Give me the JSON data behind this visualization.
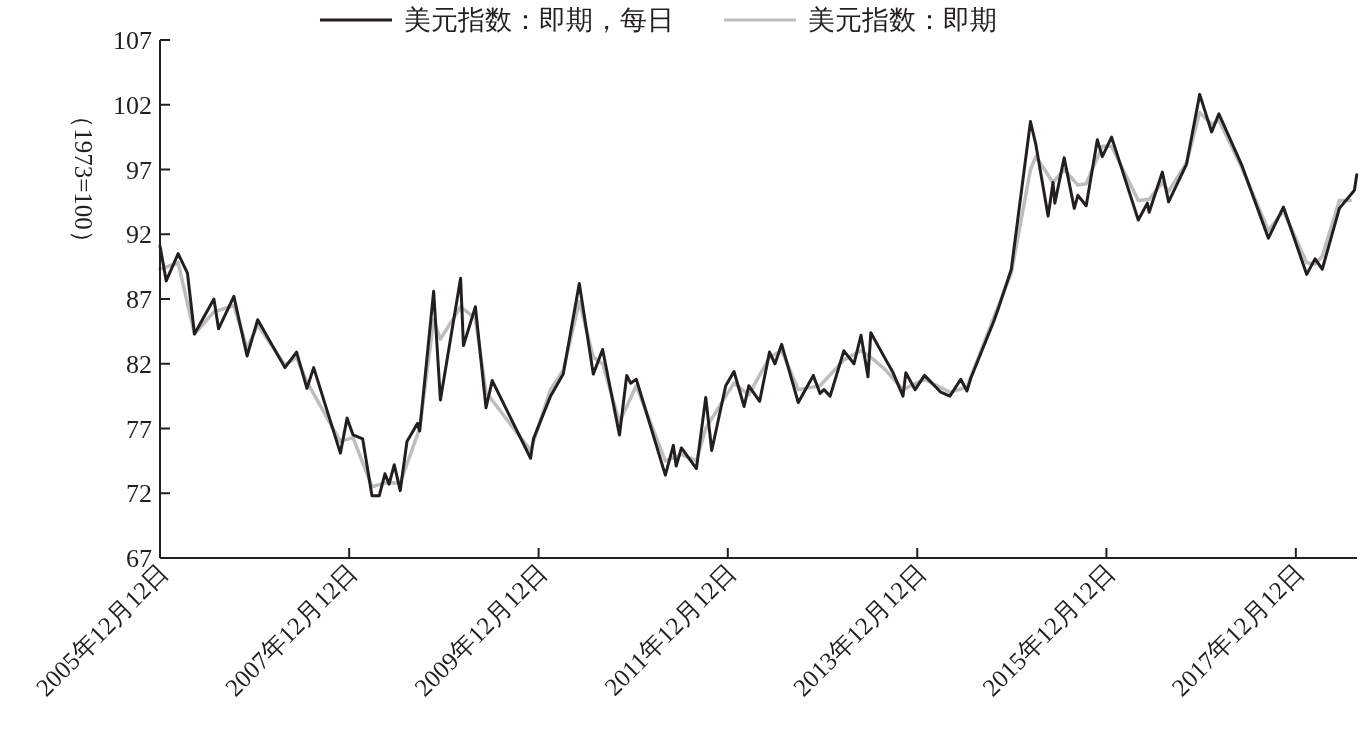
{
  "chart_data": {
    "type": "line",
    "ylabel": "（1973=100）",
    "xlim": [
      "2005-12-12",
      "2018-08-05"
    ],
    "ylim": [
      67,
      107
    ],
    "xticks": [
      {
        "value": "2005-12-12",
        "label": "2005年12月12日"
      },
      {
        "value": "2007-12-12",
        "label": "2007年12月12日"
      },
      {
        "value": "2009-12-12",
        "label": "2009年12月12日"
      },
      {
        "value": "2011-12-12",
        "label": "2011年12月12日"
      },
      {
        "value": "2013-12-12",
        "label": "2013年12月12日"
      },
      {
        "value": "2015-12-12",
        "label": "2015年12月12日"
      },
      {
        "value": "2017-12-12",
        "label": "2017年12月12日"
      }
    ],
    "yticks": [
      67,
      72,
      77,
      82,
      87,
      92,
      97,
      102,
      107
    ],
    "grid": false,
    "legend": "top",
    "marker": "none",
    "line_style": "solid",
    "series": [
      {
        "name": "美元指数：即期",
        "color": "#bdbdbd",
        "x": [
          "2005-12-12",
          "2006-02-20",
          "2006-04-24",
          "2006-07-08",
          "2006-09-23",
          "2006-11-13",
          "2006-12-24",
          "2007-04-08",
          "2007-05-23",
          "2007-07-02",
          "2007-11-08",
          "2007-12-27",
          "2008-03-09",
          "2008-04-28",
          "2008-06-26",
          "2008-09-09",
          "2008-11-02",
          "2008-11-28",
          "2009-02-14",
          "2009-04-12",
          "2009-05-23",
          "2009-11-11",
          "2010-01-27",
          "2010-03-17",
          "2010-05-18",
          "2010-07-11",
          "2010-08-16",
          "2010-10-20",
          "2010-12-24",
          "2011-04-15",
          "2011-06-16",
          "2011-08-13",
          "2011-09-18",
          "2011-12-04",
          "2012-01-05",
          "2012-03-02",
          "2012-05-21",
          "2012-07-07",
          "2012-09-09",
          "2012-12-02",
          "2013-03-04",
          "2013-05-09",
          "2013-06-16",
          "2013-08-13",
          "2013-10-18",
          "2014-01-09",
          "2014-04-17",
          "2014-06-22",
          "2014-10-02",
          "2014-12-10",
          "2015-02-22",
          "2015-03-15",
          "2015-05-20",
          "2015-07-02",
          "2015-08-24",
          "2015-09-25",
          "2015-11-26",
          "2016-01-01",
          "2016-04-13",
          "2016-05-25",
          "2016-07-15",
          "2016-08-08",
          "2016-10-16",
          "2016-12-06",
          "2017-01-21",
          "2017-02-18",
          "2017-05-16",
          "2017-08-28",
          "2017-10-25",
          "2018-01-23",
          "2018-02-24",
          "2018-03-24",
          "2018-05-29",
          "2018-07-10"
        ],
        "values": [
          89.3,
          89.8,
          84.3,
          86.0,
          86.5,
          83.2,
          85.0,
          81.9,
          82.5,
          80.6,
          76.0,
          76.3,
          72.5,
          72.8,
          72.8,
          77.0,
          85.4,
          83.9,
          86.4,
          85.5,
          79.8,
          75.3,
          80.0,
          81.5,
          86.8,
          82.5,
          82.0,
          77.5,
          80.3,
          74.5,
          75.0,
          74.5,
          77.0,
          79.5,
          80.5,
          79.6,
          82.5,
          83.0,
          80.0,
          80.3,
          82.3,
          83.0,
          82.5,
          81.5,
          80.0,
          80.8,
          79.8,
          80.2,
          85.5,
          89.0,
          97.0,
          98.0,
          96.0,
          97.0,
          95.8,
          95.9,
          98.8,
          98.8,
          94.6,
          94.7,
          96.0,
          95.3,
          97.5,
          101.4,
          100.5,
          100.8,
          97.2,
          92.3,
          93.8,
          89.8,
          89.7,
          90.3,
          94.6,
          94.6
        ]
      },
      {
        "name": "美元指数：即期，每日",
        "color": "#231f20",
        "x": [
          "2005-12-12",
          "2006-01-05",
          "2006-02-20",
          "2006-03-28",
          "2006-04-24",
          "2006-07-08",
          "2006-07-26",
          "2006-09-23",
          "2006-11-13",
          "2006-12-24",
          "2007-04-08",
          "2007-05-23",
          "2007-07-02",
          "2007-07-28",
          "2007-11-08",
          "2007-12-04",
          "2007-12-27",
          "2008-02-02",
          "2008-03-09",
          "2008-04-06",
          "2008-04-28",
          "2008-05-14",
          "2008-06-03",
          "2008-06-26",
          "2008-07-22",
          "2008-09-01",
          "2008-09-09",
          "2008-11-02",
          "2008-11-28",
          "2009-02-14",
          "2009-02-25",
          "2009-04-12",
          "2009-05-23",
          "2009-06-16",
          "2009-11-11",
          "2009-11-22",
          "2010-01-27",
          "2010-03-17",
          "2010-05-18",
          "2010-07-11",
          "2010-08-16",
          "2010-10-20",
          "2010-11-17",
          "2010-12-02",
          "2010-12-24",
          "2011-04-15",
          "2011-05-16",
          "2011-05-27",
          "2011-06-16",
          "2011-08-13",
          "2011-09-18",
          "2011-10-11",
          "2011-12-04",
          "2012-01-05",
          "2012-02-13",
          "2012-03-02",
          "2012-04-13",
          "2012-05-21",
          "2012-06-11",
          "2012-07-07",
          "2012-09-09",
          "2012-11-06",
          "2012-12-02",
          "2012-12-17",
          "2013-01-10",
          "2013-03-04",
          "2013-04-12",
          "2013-05-09",
          "2013-06-05",
          "2013-06-16",
          "2013-08-13",
          "2013-09-10",
          "2013-10-18",
          "2013-10-29",
          "2013-12-04",
          "2014-01-09",
          "2014-03-13",
          "2014-04-17",
          "2014-05-29",
          "2014-06-22",
          "2014-07-07",
          "2014-10-02",
          "2014-10-20",
          "2014-12-10",
          "2015-02-22",
          "2015-03-15",
          "2015-05-01",
          "2015-05-20",
          "2015-05-27",
          "2015-07-02",
          "2015-08-10",
          "2015-08-24",
          "2015-09-25",
          "2015-11-07",
          "2015-11-26",
          "2016-01-01",
          "2016-04-13",
          "2016-05-18",
          "2016-05-25",
          "2016-07-15",
          "2016-08-08",
          "2016-10-16",
          "2016-12-06",
          "2017-01-21",
          "2017-02-18",
          "2017-05-16",
          "2017-08-28",
          "2017-10-25",
          "2018-01-23",
          "2018-02-24",
          "2018-03-24",
          "2018-05-29",
          "2018-07-26",
          "2018-08-04"
        ],
        "values": [
          91.1,
          88.4,
          90.5,
          89.0,
          84.3,
          87.0,
          84.7,
          87.2,
          82.6,
          85.4,
          81.7,
          82.9,
          80.1,
          81.7,
          75.1,
          77.8,
          76.5,
          76.2,
          71.8,
          71.8,
          73.5,
          72.7,
          74.2,
          72.2,
          76.0,
          77.4,
          76.8,
          87.6,
          79.2,
          88.6,
          83.4,
          86.4,
          78.6,
          80.7,
          74.7,
          76.2,
          79.5,
          81.2,
          88.2,
          81.2,
          83.1,
          76.5,
          81.1,
          80.5,
          80.8,
          73.4,
          75.7,
          74.1,
          75.5,
          73.9,
          79.4,
          75.3,
          80.3,
          81.4,
          78.7,
          80.3,
          79.1,
          82.9,
          82.0,
          83.5,
          79.0,
          81.1,
          79.7,
          80.0,
          79.5,
          83.0,
          82.0,
          84.2,
          81.0,
          84.4,
          82.3,
          81.3,
          79.5,
          81.3,
          80.0,
          81.1,
          79.8,
          79.5,
          80.8,
          79.9,
          80.9,
          85.2,
          86.2,
          89.3,
          100.7,
          98.9,
          93.4,
          96.0,
          94.4,
          97.9,
          94.0,
          95.0,
          94.2,
          99.3,
          98.0,
          99.5,
          93.1,
          94.4,
          93.7,
          96.8,
          94.5,
          97.4,
          102.8,
          99.9,
          101.3,
          97.4,
          91.7,
          94.1,
          88.9,
          90.1,
          89.3,
          94.0,
          95.4,
          96.6
        ]
      }
    ]
  }
}
